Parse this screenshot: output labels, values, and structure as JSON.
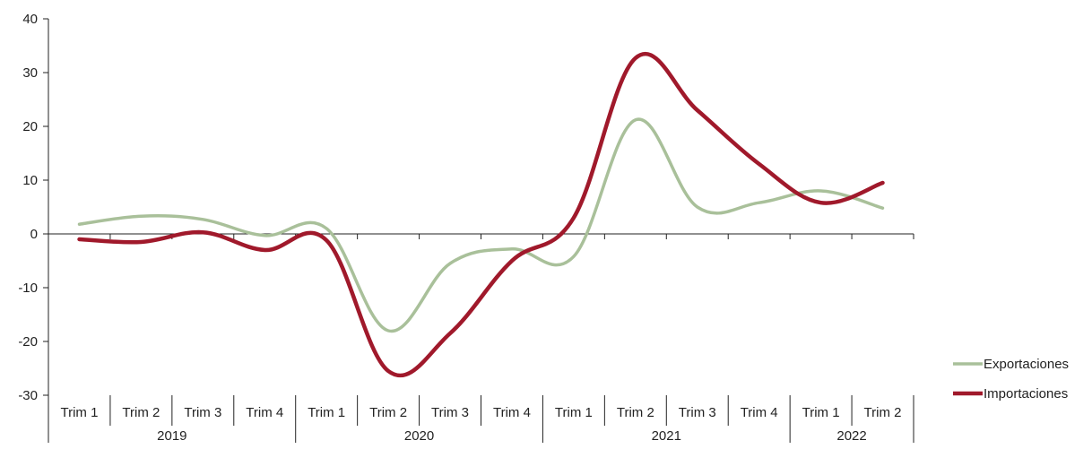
{
  "chart_data": {
    "type": "line",
    "title": "",
    "xlabel": "",
    "ylabel": "",
    "ylim": [
      -30,
      40
    ],
    "yticks": [
      40,
      30,
      20,
      10,
      0,
      -10,
      -20,
      -30
    ],
    "grid": false,
    "legend_position": "bottom-right",
    "categories": [
      "Trim 1",
      "Trim 2",
      "Trim 3",
      "Trim 4",
      "Trim 1",
      "Trim 2",
      "Trim 3",
      "Trim 4",
      "Trim 1",
      "Trim 2",
      "Trim 3",
      "Trim 4",
      "Trim 1",
      "Trim 2"
    ],
    "years": [
      {
        "label": "2019",
        "count": 4
      },
      {
        "label": "2020",
        "count": 4
      },
      {
        "label": "2021",
        "count": 4
      },
      {
        "label": "2022",
        "count": 2
      }
    ],
    "series": [
      {
        "name": "Exportaciones",
        "color": "#a9c09a",
        "values": [
          1.8,
          3.3,
          2.7,
          -0.3,
          1.0,
          -18.0,
          -5.5,
          -2.8,
          -4.2,
          21.2,
          5.0,
          5.8,
          8.0,
          4.8
        ]
      },
      {
        "name": "Importaciones",
        "color": "#a0192b",
        "values": [
          -1.0,
          -1.5,
          0.3,
          -3.0,
          -1.2,
          -25.5,
          -18.5,
          -5.0,
          3.0,
          32.7,
          23.0,
          13.0,
          5.8,
          9.5
        ]
      }
    ]
  }
}
